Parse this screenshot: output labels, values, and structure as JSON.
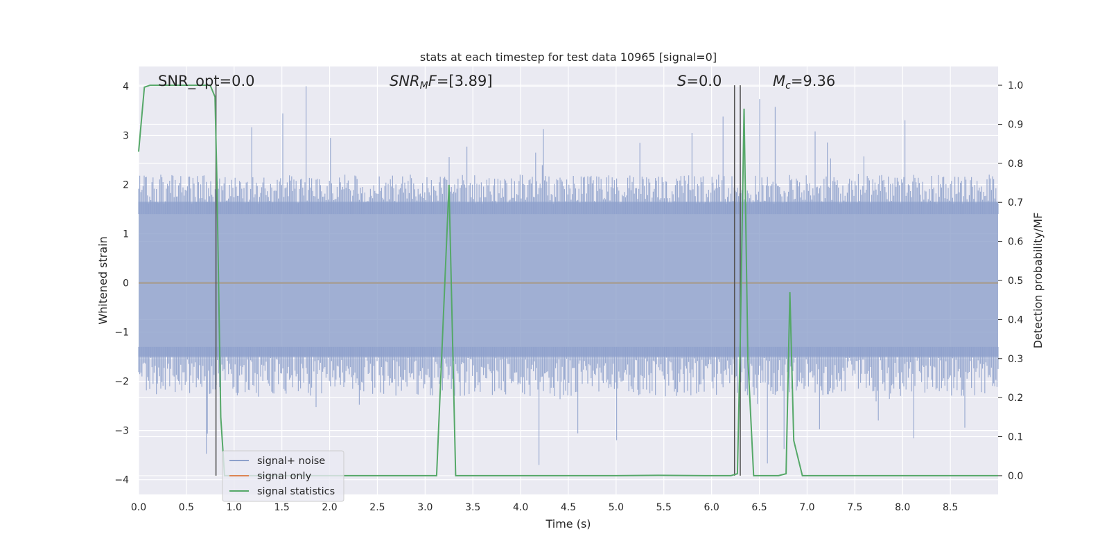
{
  "chart_data": {
    "type": "line",
    "title": "stats at each timestep for test data 10965 [signal=0]",
    "xlabel": "Time (s)",
    "ylabel": "Whitened strain",
    "ylabel_right": "Detection probability/MF",
    "xlim": [
      0.0,
      9.0
    ],
    "ylim": [
      -4.3,
      4.4
    ],
    "ylim_right": [
      -0.048,
      1.048
    ],
    "x_ticks": [
      "0.0",
      "0.5",
      "1.0",
      "1.5",
      "2.0",
      "2.5",
      "3.0",
      "3.5",
      "4.0",
      "4.5",
      "5.0",
      "5.5",
      "6.0",
      "6.5",
      "7.0",
      "7.5",
      "8.0",
      "8.5"
    ],
    "y_ticks": [
      "4",
      "3",
      "2",
      "1",
      "0",
      "−1",
      "−2",
      "−3",
      "−4"
    ],
    "y_right_ticks": [
      "1.0",
      "0.9",
      "0.8",
      "0.7",
      "0.6",
      "0.5",
      "0.4",
      "0.3",
      "0.2",
      "0.1",
      "0.0"
    ],
    "grid": true,
    "legend_position": "lower-left",
    "legend": [
      {
        "name": "signal+ noise",
        "color": "#8da0cb"
      },
      {
        "name": "signal only",
        "color": "#dd8452"
      },
      {
        "name": "signal statistics",
        "color": "#55a868"
      }
    ],
    "annotations": [
      {
        "id": "snr_opt",
        "text": "SNR_opt=0.0"
      },
      {
        "id": "snr_mf",
        "text": "SNR",
        "sub": "M",
        "text2": "F=[3.89]",
        "italic": true
      },
      {
        "id": "s",
        "text": "S",
        "text2": "=0.0",
        "italic": true
      },
      {
        "id": "mc",
        "text": "M",
        "sub": "c",
        "text2": "=9.36",
        "italic": true
      }
    ],
    "noise_band": {
      "typical_min": -2.0,
      "typical_max": 2.0,
      "peak_max": 4.0,
      "peak_min": -3.7,
      "axis": "left"
    },
    "signal_only": {
      "name": "signal only",
      "x": [
        0.0,
        9.0
      ],
      "y": [
        0.0,
        0.0
      ],
      "axis": "left"
    },
    "series": [
      {
        "name": "signal statistics",
        "axis": "right",
        "x": [
          0.0,
          0.06,
          0.12,
          0.3,
          0.6,
          0.75,
          0.8,
          0.82,
          0.86,
          0.9,
          1.0,
          2.0,
          3.0,
          3.12,
          3.25,
          3.32,
          3.4,
          4.0,
          5.0,
          5.44,
          6.0,
          6.2,
          6.27,
          6.3,
          6.34,
          6.38,
          6.44,
          6.5,
          6.7,
          6.78,
          6.82,
          6.86,
          6.95,
          7.0,
          8.0,
          9.0
        ],
        "y": [
          0.83,
          0.995,
          1.0,
          1.0,
          1.0,
          1.0,
          0.97,
          0.75,
          0.15,
          0.0,
          0.0,
          0.0,
          0.0,
          0.0,
          0.745,
          0.0,
          0.0,
          0.0,
          0.0,
          0.001,
          0.0,
          0.0,
          0.005,
          0.345,
          0.94,
          0.3,
          0.0,
          0.0,
          0.0,
          0.005,
          0.47,
          0.09,
          0.0,
          0.0,
          0.0,
          0.0
        ]
      }
    ],
    "vertical_lines": [
      0.81,
      6.24,
      6.3
    ]
  }
}
